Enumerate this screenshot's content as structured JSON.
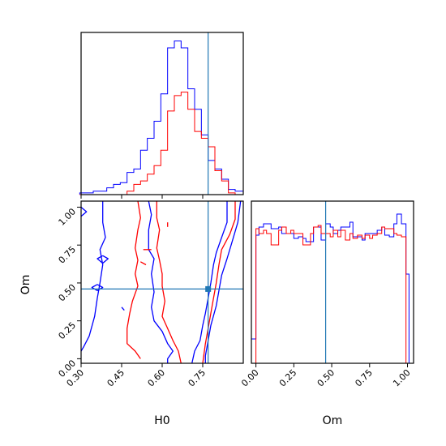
{
  "chart_data": {
    "type": "corner",
    "parameters": [
      "H0",
      "Om"
    ],
    "truth": {
      "H0": 0.77,
      "Om": 0.46
    },
    "colors": {
      "series_a": "#0000ff",
      "series_b": "#ff0000",
      "truth": "#1f77b4"
    },
    "ranges": {
      "H0": [
        0.3,
        0.9
      ],
      "Om": [
        -0.03,
        1.04
      ]
    },
    "grid": false,
    "panels": [
      {
        "id": "h0-histogram",
        "type": "histogram",
        "x": "H0",
        "ticks": [
          0.3,
          0.45,
          0.6,
          0.75
        ],
        "bin_edges": [
          0.295,
          0.32,
          0.345,
          0.37,
          0.395,
          0.42,
          0.445,
          0.47,
          0.495,
          0.52,
          0.545,
          0.57,
          0.595,
          0.62,
          0.645,
          0.67,
          0.695,
          0.72,
          0.745,
          0.77,
          0.795,
          0.82,
          0.845,
          0.87,
          0.9
        ],
        "series": [
          {
            "color": "#0000ff",
            "counts": [
              1,
              1,
              2,
              2,
              4,
              6,
              7,
              13,
              15,
              26,
              33,
              43,
              59,
              86,
              90,
              86,
              62,
              50,
              35,
              20,
              15,
              9,
              3,
              2
            ]
          },
          {
            "color": "#ff0000",
            "counts": [
              0,
              0,
              0,
              0,
              0,
              0,
              0,
              2,
              6,
              8,
              12,
              17,
              26,
              49,
              58,
              60,
              50,
              37,
              33,
              28,
              14,
              8,
              1,
              0
            ]
          }
        ]
      },
      {
        "id": "om-histogram",
        "type": "histogram",
        "x": "Om",
        "ticks": [
          0.0,
          0.25,
          0.5,
          0.75,
          1.0
        ],
        "bin_edges": [
          -0.03,
          0.0,
          0.02,
          0.05,
          0.07,
          0.1,
          0.12,
          0.15,
          0.17,
          0.2,
          0.23,
          0.25,
          0.28,
          0.31,
          0.33,
          0.36,
          0.38,
          0.41,
          0.43,
          0.46,
          0.49,
          0.51,
          0.54,
          0.56,
          0.59,
          0.62,
          0.64,
          0.67,
          0.7,
          0.72,
          0.75,
          0.77,
          0.8,
          0.83,
          0.85,
          0.88,
          0.91,
          0.93,
          0.96,
          0.99,
          1.01
        ],
        "series": [
          {
            "color": "#0000ff",
            "counts": [
              15,
              79,
              84,
              86,
              86,
              83,
              83,
              84,
              80,
              80,
              80,
              77,
              78,
              77,
              75,
              75,
              84,
              84,
              76,
              86,
              84,
              80,
              82,
              84,
              84,
              87,
              78,
              78,
              76,
              80,
              80,
              80,
              82,
              84,
              79,
              78,
              86,
              92,
              86,
              55
            ]
          },
          {
            "color": "#ff0000",
            "counts": [
              0,
              83,
              80,
              82,
              80,
              73,
              73,
              82,
              84,
              80,
              82,
              80,
              80,
              73,
              73,
              80,
              84,
              85,
              80,
              80,
              78,
              82,
              78,
              82,
              76,
              80,
              77,
              79,
              77,
              79,
              77,
              79,
              80,
              84,
              83,
              83,
              80,
              79,
              78,
              0
            ]
          }
        ]
      },
      {
        "id": "om-vs-h0-contour",
        "type": "contour",
        "x": "H0",
        "y": "Om",
        "xticks": [
          0.3,
          0.45,
          0.6,
          0.75
        ],
        "yticks": [
          0.0,
          0.25,
          0.5,
          0.75,
          1.0
        ],
        "series": [
          {
            "color": "#0000ff",
            "contours": [
              [
                [
                  0.55,
                  1.04
                ],
                [
                  0.56,
                  0.95
                ],
                [
                  0.55,
                  0.85
                ],
                [
                  0.55,
                  0.72
                ],
                [
                  0.57,
                  0.66
                ],
                [
                  0.56,
                  0.56
                ],
                [
                  0.57,
                  0.44
                ],
                [
                  0.56,
                  0.34
                ],
                [
                  0.57,
                  0.25
                ],
                [
                  0.6,
                  0.18
                ],
                [
                  0.62,
                  0.1
                ],
                [
                  0.64,
                  0.05
                ],
                [
                  0.62,
                  0.0
                ],
                [
                  0.62,
                  -0.03
                ]
              ],
              [
                [
                  0.84,
                  1.04
                ],
                [
                  0.84,
                  0.9
                ],
                [
                  0.82,
                  0.8
                ],
                [
                  0.8,
                  0.7
                ],
                [
                  0.79,
                  0.62
                ],
                [
                  0.78,
                  0.5
                ],
                [
                  0.77,
                  0.4
                ],
                [
                  0.76,
                  0.3
                ],
                [
                  0.75,
                  0.22
                ],
                [
                  0.74,
                  0.12
                ],
                [
                  0.72,
                  0.05
                ],
                [
                  0.71,
                  -0.03
                ]
              ],
              [
                [
                  0.38,
                  1.04
                ],
                [
                  0.38,
                  0.9
                ],
                [
                  0.39,
                  0.8
                ],
                [
                  0.37,
                  0.72
                ],
                [
                  0.38,
                  0.62
                ],
                [
                  0.37,
                  0.5
                ],
                [
                  0.36,
                  0.4
                ],
                [
                  0.35,
                  0.28
                ],
                [
                  0.33,
                  0.15
                ],
                [
                  0.31,
                  0.08
                ],
                [
                  0.3,
                  0.05
                ]
              ],
              [
                [
                  0.89,
                  1.04
                ],
                [
                  0.88,
                  0.9
                ],
                [
                  0.86,
                  0.78
                ],
                [
                  0.84,
                  0.66
                ],
                [
                  0.82,
                  0.55
                ],
                [
                  0.81,
                  0.45
                ],
                [
                  0.8,
                  0.35
                ],
                [
                  0.78,
                  0.22
                ],
                [
                  0.77,
                  0.12
                ],
                [
                  0.76,
                  0.02
                ],
                [
                  0.76,
                  -0.03
                ]
              ],
              [
                [
                  0.3,
                  1.0
                ],
                [
                  0.32,
                  0.97
                ],
                [
                  0.3,
                  0.94
                ]
              ],
              [
                [
                  0.38,
                  0.68
                ],
                [
                  0.36,
                  0.66
                ],
                [
                  0.38,
                  0.63
                ],
                [
                  0.4,
                  0.66
                ],
                [
                  0.38,
                  0.68
                ]
              ],
              [
                [
                  0.36,
                  0.49
                ],
                [
                  0.34,
                  0.47
                ],
                [
                  0.36,
                  0.45
                ],
                [
                  0.38,
                  0.47
                ],
                [
                  0.36,
                  0.49
                ]
              ],
              [
                [
                  0.45,
                  0.34
                ],
                [
                  0.46,
                  0.32
                ]
              ]
            ]
          },
          {
            "color": "#ff0000",
            "contours": [
              [
                [
                  0.51,
                  1.04
                ],
                [
                  0.52,
                  0.93
                ],
                [
                  0.51,
                  0.85
                ],
                [
                  0.5,
                  0.73
                ],
                [
                  0.51,
                  0.65
                ],
                [
                  0.5,
                  0.56
                ],
                [
                  0.51,
                  0.48
                ],
                [
                  0.49,
                  0.38
                ],
                [
                  0.48,
                  0.3
                ],
                [
                  0.47,
                  0.2
                ],
                [
                  0.47,
                  0.1
                ],
                [
                  0.5,
                  0.05
                ],
                [
                  0.52,
                  0.0
                ]
              ],
              [
                [
                  0.87,
                  1.04
                ],
                [
                  0.87,
                  0.92
                ],
                [
                  0.85,
                  0.82
                ],
                [
                  0.82,
                  0.72
                ],
                [
                  0.81,
                  0.62
                ],
                [
                  0.8,
                  0.5
                ],
                [
                  0.79,
                  0.4
                ],
                [
                  0.78,
                  0.3
                ],
                [
                  0.77,
                  0.2
                ],
                [
                  0.76,
                  0.1
                ],
                [
                  0.75,
                  -0.03
                ]
              ],
              [
                [
                  0.58,
                  1.04
                ],
                [
                  0.58,
                  0.93
                ],
                [
                  0.59,
                  0.85
                ],
                [
                  0.58,
                  0.73
                ],
                [
                  0.59,
                  0.65
                ],
                [
                  0.6,
                  0.56
                ],
                [
                  0.6,
                  0.48
                ],
                [
                  0.61,
                  0.38
                ],
                [
                  0.6,
                  0.28
                ],
                [
                  0.62,
                  0.2
                ],
                [
                  0.64,
                  0.12
                ],
                [
                  0.66,
                  0.05
                ],
                [
                  0.67,
                  -0.03
                ]
              ],
              [
                [
                  0.62,
                  0.9
                ],
                [
                  0.62,
                  0.87
                ]
              ],
              [
                [
                  0.53,
                  0.72
                ],
                [
                  0.56,
                  0.72
                ]
              ],
              [
                [
                  0.52,
                  0.64
                ],
                [
                  0.54,
                  0.62
                ]
              ]
            ]
          }
        ]
      }
    ],
    "xlabels": [
      "H0",
      "Om"
    ],
    "ylabels": [
      "",
      "Om"
    ]
  }
}
